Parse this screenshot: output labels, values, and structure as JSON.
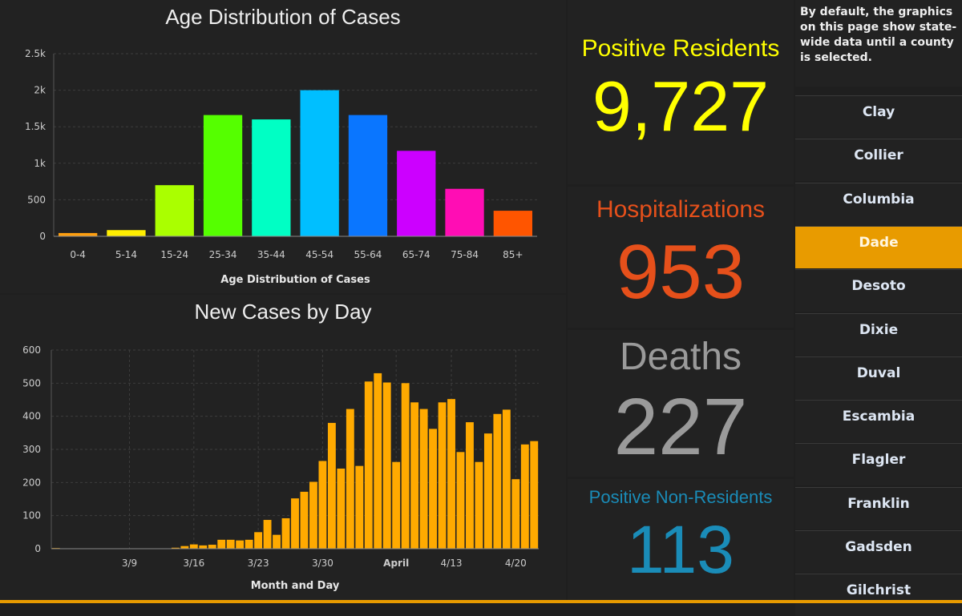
{
  "age_chart": {
    "title": "Age Distribution of Cases",
    "xlabel": "Age Distribution of Cases"
  },
  "daily_chart": {
    "title": "New Cases by Day",
    "xlabel": "Month and Day"
  },
  "chart_data": [
    {
      "type": "bar",
      "title": "Age Distribution of Cases",
      "xlabel": "Age Distribution of Cases",
      "ylabel": "",
      "categories": [
        "0-4",
        "5-14",
        "15-24",
        "25-34",
        "35-44",
        "45-54",
        "55-64",
        "65-74",
        "75-84",
        "85+"
      ],
      "values": [
        45,
        85,
        700,
        1660,
        1600,
        2000,
        1660,
        1170,
        650,
        350
      ],
      "colors": [
        "#ff9f0f",
        "#ffee00",
        "#aaff00",
        "#55ff00",
        "#00ffc4",
        "#00bfff",
        "#0a76ff",
        "#cc00ff",
        "#ff0db4",
        "#ff5500"
      ],
      "ylim": [
        0,
        2500
      ],
      "yticks": [
        "0",
        "500",
        "1k",
        "1.5k",
        "2k",
        "2.5k"
      ],
      "grid": true
    },
    {
      "type": "bar",
      "title": "New Cases by Day",
      "xlabel": "Month and Day",
      "ylabel": "",
      "x_tick_labels": [
        "3/9",
        "3/16",
        "3/23",
        "3/30",
        "April",
        "4/13",
        "4/20"
      ],
      "x_tick_days": [
        8,
        15,
        22,
        29,
        37,
        43,
        50
      ],
      "values": [
        2,
        0,
        0,
        0,
        0,
        0,
        0,
        0,
        0,
        0,
        0,
        0,
        1,
        3,
        8,
        13,
        10,
        12,
        27,
        27,
        25,
        27,
        50,
        87,
        42,
        92,
        152,
        172,
        202,
        265,
        380,
        242,
        422,
        250,
        505,
        530,
        502,
        262,
        500,
        442,
        422,
        362,
        442,
        452,
        292,
        382,
        262,
        348,
        407,
        420,
        210,
        315,
        325
      ],
      "ylim": [
        0,
        600
      ],
      "yticks": [
        "0",
        "100",
        "200",
        "300",
        "400",
        "500",
        "600"
      ],
      "color": "#ffaa00",
      "grid": true
    }
  ],
  "stats": {
    "positive_residents": {
      "label": "Positive Residents",
      "value": "9,727",
      "color": "#ffff00"
    },
    "hospitalizations": {
      "label": "Hospitalizations",
      "value": "953",
      "color": "#e6501b"
    },
    "deaths": {
      "label": "Deaths",
      "value": "227",
      "color": "#9a9a9a"
    },
    "non_residents": {
      "label": "Positive Non-Residents",
      "value": "113",
      "color": "#1a8cb8"
    }
  },
  "info_text": "By default, the graphics on this page show state-wide data until a county is selected.",
  "counties": [
    "Clay",
    "Collier",
    "Columbia",
    "Dade",
    "Desoto",
    "Dixie",
    "Duval",
    "Escambia",
    "Flagler",
    "Franklin",
    "Gadsden",
    "Gilchrist"
  ],
  "selected_county": "Dade",
  "accent_color": "#e89b00"
}
